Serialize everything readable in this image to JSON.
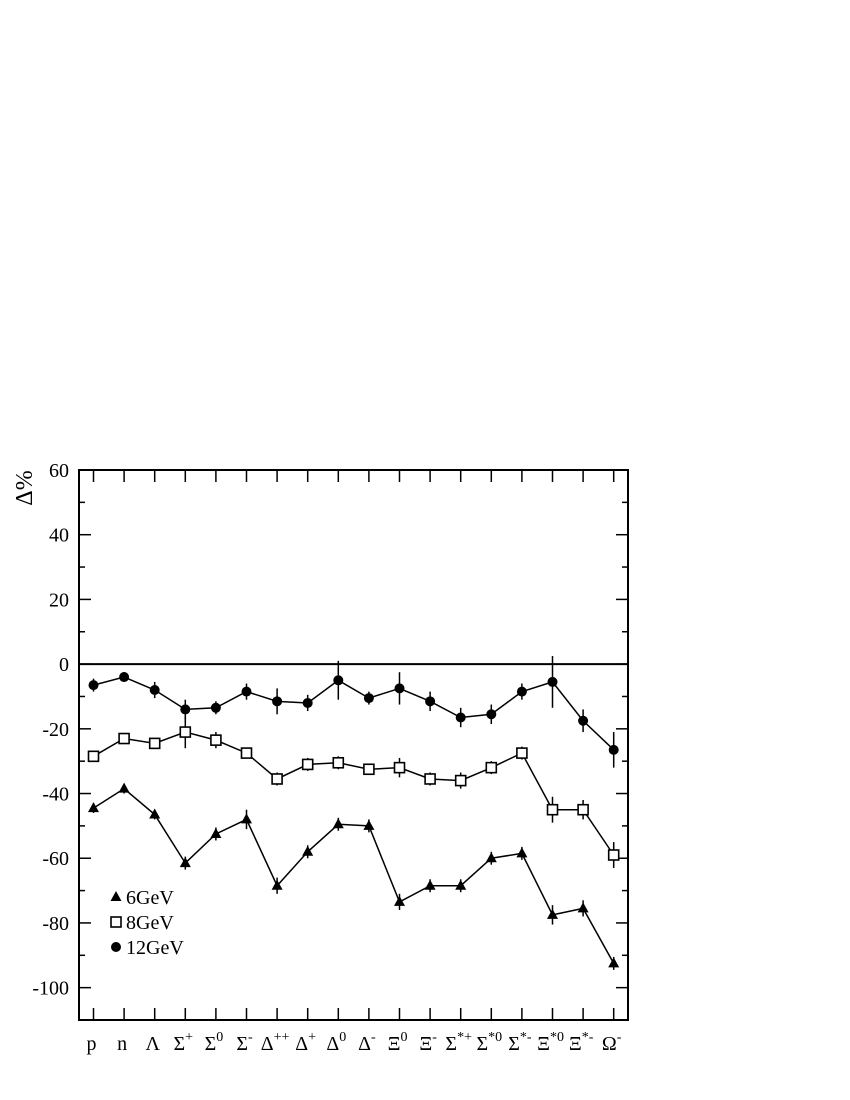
{
  "chart_data": {
    "type": "line",
    "title": "",
    "ylabel": "Δ%",
    "xlabel": "",
    "ylim": [
      -110,
      60
    ],
    "yticks": [
      60,
      40,
      20,
      0,
      -20,
      -40,
      -60,
      -80,
      -100
    ],
    "reference_line": 0,
    "grid": false,
    "legend_position": "bottom-left",
    "categories": [
      {
        "base": "p",
        "sup": ""
      },
      {
        "base": "n",
        "sup": ""
      },
      {
        "base": "Λ",
        "sup": ""
      },
      {
        "base": "Σ",
        "sup": "+"
      },
      {
        "base": "Σ",
        "sup": "0"
      },
      {
        "base": "Σ",
        "sup": "-"
      },
      {
        "base": "Δ",
        "sup": "++"
      },
      {
        "base": "Δ",
        "sup": "+"
      },
      {
        "base": "Δ",
        "sup": "0"
      },
      {
        "base": "Δ",
        "sup": "-"
      },
      {
        "base": "Ξ",
        "sup": "0"
      },
      {
        "base": "Ξ",
        "sup": "-"
      },
      {
        "base": "Σ",
        "sup": "*+"
      },
      {
        "base": "Σ",
        "sup": "*0"
      },
      {
        "base": "Σ",
        "sup": "*-"
      },
      {
        "base": "Ξ",
        "sup": "*0"
      },
      {
        "base": "Ξ",
        "sup": "*-"
      },
      {
        "base": "Ω",
        "sup": "-"
      }
    ],
    "series": [
      {
        "name": "6GeV",
        "marker": "triangle",
        "values": [
          -44.5,
          -38.5,
          -46.5,
          -61.5,
          -52.5,
          -48,
          -68.5,
          -58,
          -49.5,
          -50,
          -73.5,
          -68.5,
          -68.5,
          -60,
          -58.5,
          -77.5,
          -75.5,
          -92.5
        ],
        "errors": [
          1.5,
          1.5,
          1.5,
          2,
          2,
          3,
          2.5,
          2,
          2,
          2,
          2.5,
          2,
          2,
          2,
          2,
          3,
          2.5,
          2
        ]
      },
      {
        "name": "8GeV",
        "marker": "open-square",
        "values": [
          -28.5,
          -23,
          -24.5,
          -21,
          -23.5,
          -27.5,
          -35.5,
          -31,
          -30.5,
          -32.5,
          -32,
          -35.5,
          -36,
          -32,
          -27.5,
          -45,
          -45,
          -59
        ],
        "errors": [
          1,
          1,
          1,
          5,
          2.5,
          1.5,
          2,
          2,
          2,
          1.5,
          3,
          2,
          2.5,
          2,
          2,
          4,
          3,
          4
        ]
      },
      {
        "name": "12GeV",
        "marker": "filled-circle",
        "values": [
          -6.5,
          -4,
          -8,
          -14,
          -13.5,
          -8.5,
          -11.5,
          -12,
          -5,
          -10.5,
          -7.5,
          -11.5,
          -16.5,
          -15.5,
          -8.5,
          -5.5,
          -17.5,
          -26.5
        ],
        "errors": [
          2,
          1.5,
          2.5,
          3,
          2,
          2.5,
          4,
          2.5,
          6,
          2,
          5,
          3,
          3,
          3,
          2.5,
          8,
          3.5,
          5.5
        ]
      }
    ]
  }
}
